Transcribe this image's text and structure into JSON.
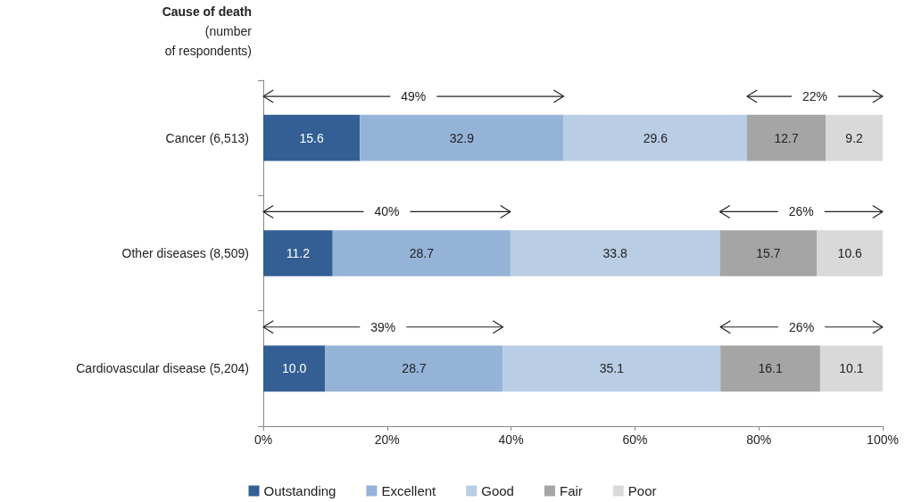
{
  "chart_data": {
    "type": "bar",
    "orientation": "horizontal",
    "stacked": true,
    "ylabel": "Cause of death\n(number\nof respondents)",
    "categories": [
      "Cancer (6,513)",
      "Other diseases (8,509)",
      "Cardiovascular disease (5,204)"
    ],
    "series": [
      {
        "name": "Outstanding",
        "color": "#345f94",
        "values": [
          15.6,
          11.2,
          10.0
        ]
      },
      {
        "name": "Excellent",
        "color": "#95b3d7",
        "values": [
          32.9,
          28.7,
          28.7
        ]
      },
      {
        "name": "Good",
        "color": "#b9cde5",
        "values": [
          29.6,
          33.8,
          35.1
        ]
      },
      {
        "name": "Fair",
        "color": "#a5a5a5",
        "values": [
          12.7,
          15.7,
          16.1
        ]
      },
      {
        "name": "Poor",
        "color": "#d9d9d9",
        "values": [
          9.2,
          10.6,
          10.1
        ]
      }
    ],
    "value_labels": [
      [
        "15.6",
        "11.2",
        "10.0"
      ],
      [
        "32.9",
        "28.7",
        "28.7"
      ],
      [
        "29.6",
        "33.8",
        "35.1"
      ],
      [
        "12.7",
        "15.7",
        "16.1"
      ],
      [
        "9.2",
        "10.6",
        "10.1"
      ]
    ],
    "xlim": [
      0,
      100
    ],
    "xticks": [
      {
        "value": 0,
        "label": "0%"
      },
      {
        "value": 20,
        "label": "20%"
      },
      {
        "value": 40,
        "label": "40%"
      },
      {
        "value": 60,
        "label": "60%"
      },
      {
        "value": 80,
        "label": "80%"
      },
      {
        "value": 100,
        "label": "100%"
      }
    ],
    "annotations": [
      "49%",
      "22%",
      "40%",
      "26%",
      "39%",
      "26%"
    ],
    "grid": false,
    "legend": "bottom"
  }
}
